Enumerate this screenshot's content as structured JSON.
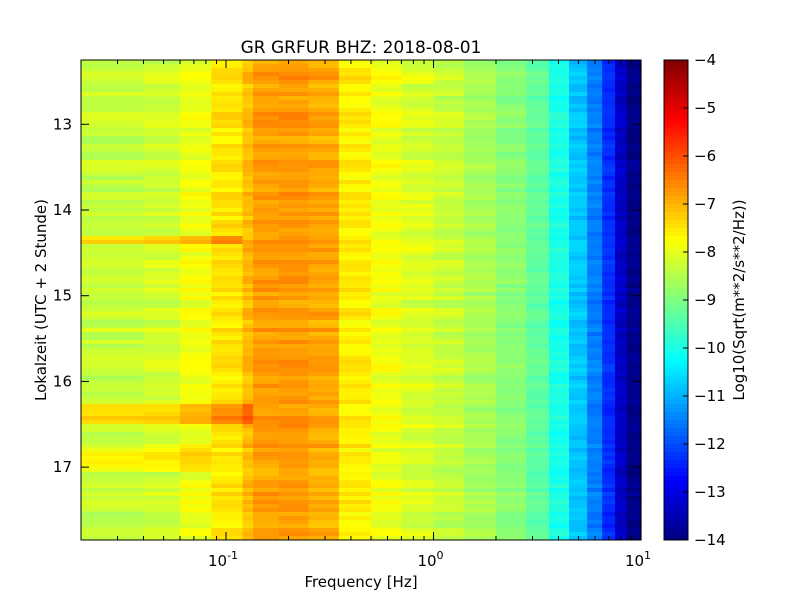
{
  "chart_data": {
    "type": "heatmap",
    "title": "GR GRFUR BHZ: 2018-08-01",
    "xlabel": "Frequency [Hz]",
    "ylabel": "Lokalzeit (UTC + 2 Stunde)",
    "x_scale": "log",
    "xlim": [
      0.02,
      10
    ],
    "ylim": [
      17.85,
      12.25
    ],
    "y_inverted": true,
    "x_ticks": [
      {
        "value": 0.1,
        "base": "10",
        "exp": "-1"
      },
      {
        "value": 1,
        "base": "10",
        "exp": "0"
      },
      {
        "value": 10,
        "base": "10",
        "exp": "1"
      }
    ],
    "y_ticks": [
      {
        "value": 13,
        "label": "13"
      },
      {
        "value": 14,
        "label": "14"
      },
      {
        "value": 15,
        "label": "15"
      },
      {
        "value": 16,
        "label": "16"
      },
      {
        "value": 17,
        "label": "17"
      }
    ],
    "colorbar": {
      "label": "Log10(Sqrt(m**2/s**2/Hz))",
      "colormap": "jet",
      "min": -14,
      "max": -4,
      "ticks": [
        {
          "value": -4,
          "label": "−4"
        },
        {
          "value": -5,
          "label": "−5"
        },
        {
          "value": -6,
          "label": "−6"
        },
        {
          "value": -7,
          "label": "−7"
        },
        {
          "value": -8,
          "label": "−8"
        },
        {
          "value": -9,
          "label": "−9"
        },
        {
          "value": -10,
          "label": "−10"
        },
        {
          "value": -11,
          "label": "−11"
        },
        {
          "value": -12,
          "label": "−12"
        },
        {
          "value": -13,
          "label": "−13"
        },
        {
          "value": -14,
          "label": "−14"
        }
      ]
    },
    "frequency_bins": [
      0.02,
      0.04,
      0.06,
      0.085,
      0.12,
      0.135,
      0.18,
      0.25,
      0.35,
      0.5,
      0.7,
      1.0,
      1.4,
      2.0,
      2.8,
      3.6,
      4.5,
      5.5,
      6.5,
      7.5,
      8.5,
      10
    ],
    "spectrum_profile": [
      -8.3,
      -8.2,
      -7.9,
      -7.5,
      -7.1,
      -6.8,
      -6.75,
      -6.9,
      -7.6,
      -7.9,
      -8.1,
      -8.3,
      -8.6,
      -8.9,
      -9.3,
      -10.0,
      -10.8,
      -11.5,
      -12.3,
      -13.3,
      -13.9
    ],
    "time_anomalies": [
      {
        "t_start": 14.3,
        "t_end": 14.4,
        "f_max": 0.12,
        "delta": 0.8
      },
      {
        "t_start": 16.25,
        "t_end": 16.5,
        "f_max": 0.135,
        "delta": 0.9
      },
      {
        "t_start": 16.8,
        "t_end": 17.05,
        "f_max": 0.085,
        "delta": 0.6
      }
    ]
  }
}
